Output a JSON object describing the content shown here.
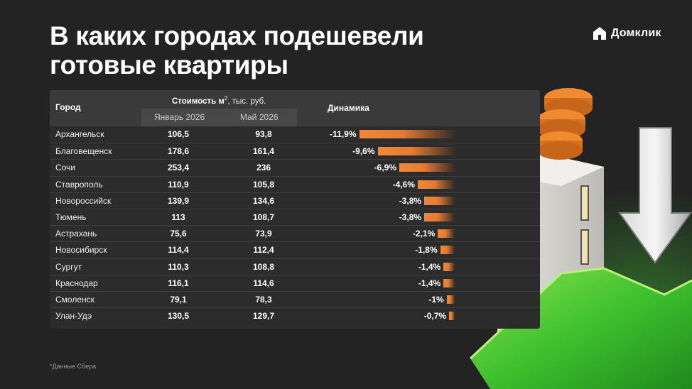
{
  "title_line1": "В каких городах подешевели",
  "title_line2": "готовые квартиры",
  "brand": {
    "name": "Домклик"
  },
  "table": {
    "header_city": "Город",
    "header_cost_prefix": "Стоимость м",
    "header_cost_sup": "2",
    "header_cost_suffix": ", тыс. руб.",
    "header_jan": "Январь 2026",
    "header_may": "Май 2026",
    "header_dynamics": "Динамика"
  },
  "footnote": "*Данные Сбера",
  "colors": {
    "bar_orange": "#f0883a",
    "green": "#3fc12e",
    "background": "#232323"
  },
  "chart_data": {
    "type": "bar",
    "orientation": "horizontal",
    "categories": [
      "Архангельск",
      "Благовещенск",
      "Сочи",
      "Ставрополь",
      "Новороссийск",
      "Тюмень",
      "Астрахань",
      "Новосибирск",
      "Сургут",
      "Краснодар",
      "Смоленск",
      "Улан-Удэ"
    ],
    "january_2026": [
      "106,5",
      "178,6",
      "253,4",
      "110,9",
      "139,9",
      "113",
      "75,6",
      "114,4",
      "110,3",
      "116,1",
      "79,1",
      "130,5"
    ],
    "may_2026": [
      "93,8",
      "161,4",
      "236",
      "105,8",
      "134,6",
      "108,7",
      "73,9",
      "112,4",
      "108,8",
      "114,6",
      "78,3",
      "129,7"
    ],
    "values": [
      -11.9,
      -9.6,
      -6.9,
      -4.6,
      -3.8,
      -3.8,
      -2.1,
      -1.8,
      -1.4,
      -1.4,
      -1,
      -0.7
    ],
    "value_labels": [
      "-11,9%",
      "-9,6%",
      "-6,9%",
      "-4,6%",
      "-3,8%",
      "-3,8%",
      "-2,1%",
      "-1,8%",
      "-1,4%",
      "-1,4%",
      "-1%",
      "-0,7%"
    ]
  }
}
